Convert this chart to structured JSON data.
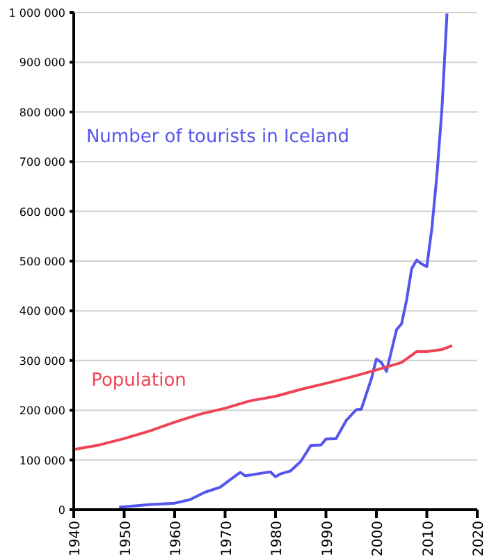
{
  "chart_data": {
    "type": "line",
    "xlim": [
      1940,
      2020
    ],
    "xticks": [
      1940,
      1950,
      1960,
      1970,
      1980,
      1990,
      2000,
      2010,
      2020
    ],
    "ylim": [
      0,
      1000000
    ],
    "yticks": [
      {
        "value": 0,
        "label": "0"
      },
      {
        "value": 100000,
        "label": "100 000"
      },
      {
        "value": 200000,
        "label": "200 000"
      },
      {
        "value": 300000,
        "label": "300 000"
      },
      {
        "value": 400000,
        "label": "400 000"
      },
      {
        "value": 500000,
        "label": "500 000"
      },
      {
        "value": 600000,
        "label": "600 000"
      },
      {
        "value": 700000,
        "label": "700 000"
      },
      {
        "value": 800000,
        "label": "800 000"
      },
      {
        "value": 900000,
        "label": "900 000"
      },
      {
        "value": 1000000,
        "label": "1 000 000"
      }
    ],
    "grid": "y",
    "marker": "none",
    "line_style": "solid",
    "series": [
      {
        "name": "Number of tourists in Iceland",
        "color": "#5555ee",
        "x": [
          1949,
          1955,
          1960,
          1963,
          1966,
          1969,
          1973,
          1974,
          1977,
          1979,
          1980,
          1981,
          1983,
          1985,
          1987,
          1989,
          1990,
          1992,
          1994,
          1996,
          1997,
          1999,
          2000,
          2001,
          2002,
          2003,
          2004,
          2005,
          2006,
          2007,
          2008,
          2009,
          2010,
          2011,
          2012,
          2013,
          2014
        ],
        "values": [
          5000,
          10000,
          13000,
          20000,
          35000,
          45000,
          75000,
          68000,
          73000,
          76000,
          66000,
          72000,
          78000,
          97000,
          129000,
          130000,
          142000,
          143000,
          179000,
          201000,
          202000,
          263000,
          303000,
          296000,
          278000,
          320000,
          362000,
          374000,
          422000,
          485000,
          502000,
          494000,
          489000,
          566000,
          673000,
          807000,
          998000
        ]
      },
      {
        "name": "Population",
        "color": "#ee4455",
        "x": [
          1940,
          1945,
          1950,
          1955,
          1960,
          1965,
          1970,
          1975,
          1980,
          1985,
          1990,
          1995,
          2000,
          2005,
          2008,
          2010,
          2013,
          2015
        ],
        "values": [
          121000,
          130000,
          143000,
          158000,
          176000,
          192000,
          204000,
          219000,
          228000,
          242000,
          254000,
          267000,
          281000,
          296000,
          318000,
          318000,
          322000,
          330000
        ]
      }
    ]
  }
}
